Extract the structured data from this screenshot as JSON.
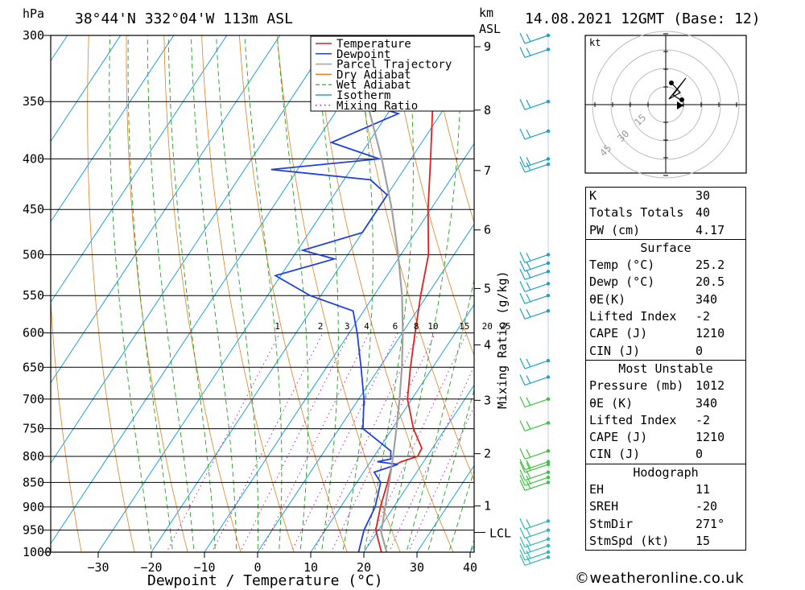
{
  "header": {
    "location": "38°44'N 332°04'W 113m ASL",
    "datetime": "14.08.2021 12GMT (Base: 12)",
    "hpa_label": "hPa",
    "km_label": "km",
    "asl_label": "ASL"
  },
  "legend": [
    "Temperature",
    "Dewpoint",
    "Parcel Trajectory",
    "Dry Adiabat",
    "Wet Adiabat",
    "Isotherm",
    "Mixing Ratio"
  ],
  "colors": {
    "temperature": "#e02020",
    "dewpoint": "#2040e0",
    "parcel": "#a0a0a0",
    "dry_adiabat": "#e08020",
    "wet_adiabat": "#20a020",
    "isotherm": "#20a0e0",
    "mixing_ratio": "#c020c0"
  },
  "chart_data": {
    "type": "line",
    "title": "38°44'N 332°04'W 113m ASL",
    "xlabel": "Dewpoint / Temperature (°C)",
    "ylabel": "hPa",
    "right_axis_label": "Mixing Ratio (g/kg)",
    "x_ticks": [
      "-30",
      "-20",
      "-10",
      "0",
      "10",
      "20",
      "30",
      "40"
    ],
    "pressure_levels": [
      300,
      350,
      400,
      450,
      500,
      550,
      600,
      650,
      700,
      750,
      800,
      850,
      900,
      950,
      1000
    ],
    "km_ticks": [
      {
        "km": "1",
        "p": 898
      },
      {
        "km": "2",
        "p": 795
      },
      {
        "km": "3",
        "p": 702
      },
      {
        "km": "4",
        "p": 617
      },
      {
        "km": "5",
        "p": 541
      },
      {
        "km": "6",
        "p": 472
      },
      {
        "km": "7",
        "p": 411
      },
      {
        "km": "8",
        "p": 357
      },
      {
        "km": "9",
        "p": 308
      }
    ],
    "lcl": {
      "label": "LCL",
      "p": 955
    },
    "mixing_ratio_labels": [
      "1",
      "2",
      "3",
      "4",
      "6",
      "8",
      "10",
      "15",
      "20",
      "25"
    ],
    "series": [
      {
        "name": "Temperature",
        "points": [
          [
            1012,
            25.2
          ],
          [
            1000,
            23.3
          ],
          [
            950,
            19.5
          ],
          [
            900,
            17.5
          ],
          [
            850,
            15.8
          ],
          [
            820,
            14.6
          ],
          [
            810,
            15.8
          ],
          [
            800,
            18.2
          ],
          [
            785,
            18.0
          ],
          [
            750,
            14.0
          ],
          [
            700,
            9.2
          ],
          [
            650,
            5.8
          ],
          [
            600,
            2.4
          ],
          [
            550,
            -1.2
          ],
          [
            500,
            -4.8
          ],
          [
            450,
            -10.5
          ],
          [
            400,
            -16.3
          ],
          [
            350,
            -23.0
          ],
          [
            300,
            -33.0
          ]
        ]
      },
      {
        "name": "Dewpoint",
        "points": [
          [
            1012,
            20.5
          ],
          [
            1000,
            19.0
          ],
          [
            950,
            17.3
          ],
          [
            900,
            16.5
          ],
          [
            850,
            14.5
          ],
          [
            830,
            12.0
          ],
          [
            815,
            15.5
          ],
          [
            810,
            11.3
          ],
          [
            805,
            13.5
          ],
          [
            790,
            12.5
          ],
          [
            750,
            4.5
          ],
          [
            700,
            1.0
          ],
          [
            650,
            -3.5
          ],
          [
            600,
            -8.5
          ],
          [
            570,
            -12.0
          ],
          [
            550,
            -22.0
          ],
          [
            525,
            -31.0
          ],
          [
            505,
            -22.0
          ],
          [
            495,
            -29.0
          ],
          [
            475,
            -20.0
          ],
          [
            435,
            -20.0
          ],
          [
            420,
            -25.0
          ],
          [
            410,
            -45.0
          ],
          [
            400,
            -26.0
          ],
          [
            385,
            -37.0
          ],
          [
            360,
            -28.0
          ],
          [
            350,
            -37.0
          ],
          [
            345,
            -26.0
          ],
          [
            335,
            -42.0
          ],
          [
            315,
            -44.0
          ],
          [
            300,
            -36.0
          ]
        ]
      },
      {
        "name": "Parcel Trajectory",
        "points": [
          [
            1012,
            25.2
          ],
          [
            1000,
            24.3
          ],
          [
            955,
            20.8
          ],
          [
            900,
            18.4
          ],
          [
            850,
            16.1
          ],
          [
            800,
            13.6
          ],
          [
            750,
            10.8
          ],
          [
            700,
            7.7
          ],
          [
            650,
            4.2
          ],
          [
            600,
            0.1
          ],
          [
            550,
            -4.7
          ],
          [
            500,
            -10.5
          ],
          [
            450,
            -17.3
          ],
          [
            400,
            -25.5
          ],
          [
            350,
            -35.4
          ],
          [
            300,
            -47.0
          ]
        ]
      }
    ],
    "winds": [
      {
        "p": 300
      },
      {
        "p": 310
      },
      {
        "p": 350
      },
      {
        "p": 375
      },
      {
        "p": 400
      },
      {
        "p": 405
      },
      {
        "p": 500
      },
      {
        "p": 510
      },
      {
        "p": 520
      },
      {
        "p": 535
      },
      {
        "p": 550
      },
      {
        "p": 570
      },
      {
        "p": 640
      },
      {
        "p": 665
      },
      {
        "p": 700
      },
      {
        "p": 740
      },
      {
        "p": 790
      },
      {
        "p": 810
      },
      {
        "p": 815
      },
      {
        "p": 830
      },
      {
        "p": 840
      },
      {
        "p": 850
      },
      {
        "p": 930
      },
      {
        "p": 950
      },
      {
        "p": 970
      },
      {
        "p": 985
      },
      {
        "p": 1000
      },
      {
        "p": 1012
      }
    ]
  },
  "hodograph": {
    "unit_label": "kt",
    "ring_labels": [
      "15",
      "30",
      "45"
    ]
  },
  "stats": {
    "general": [
      {
        "label": "K",
        "value": "30"
      },
      {
        "label": "Totals Totals",
        "value": "40"
      },
      {
        "label": "PW (cm)",
        "value": "4.17"
      }
    ],
    "surface_title": "Surface",
    "surface": [
      {
        "label": "Temp (°C)",
        "value": "25.2"
      },
      {
        "label": "Dewp (°C)",
        "value": "20.5"
      },
      {
        "label": "θE(K)",
        "value": "340"
      },
      {
        "label": "Lifted Index",
        "value": "-2"
      },
      {
        "label": "CAPE (J)",
        "value": "1210"
      },
      {
        "label": "CIN (J)",
        "value": "0"
      }
    ],
    "mu_title": "Most Unstable",
    "mu": [
      {
        "label": "Pressure (mb)",
        "value": "1012"
      },
      {
        "label": "θE (K)",
        "value": "340"
      },
      {
        "label": "Lifted Index",
        "value": "-2"
      },
      {
        "label": "CAPE (J)",
        "value": "1210"
      },
      {
        "label": "CIN (J)",
        "value": "0"
      }
    ],
    "hodo_title": "Hodograph",
    "hodo": [
      {
        "label": "EH",
        "value": "11"
      },
      {
        "label": "SREH",
        "value": "-20"
      },
      {
        "label": "StmDir",
        "value": "271°"
      },
      {
        "label": "StmSpd (kt)",
        "value": "15"
      }
    ]
  },
  "credit": "©weatheronline.co.uk"
}
